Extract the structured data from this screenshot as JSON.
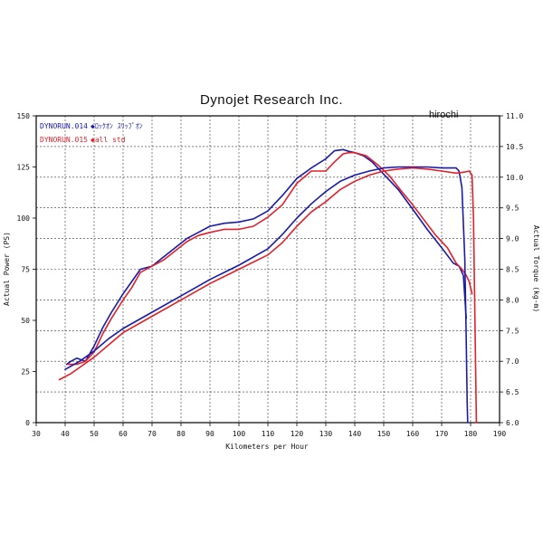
{
  "chart_data": {
    "type": "line",
    "title": "Dynojet  Research  Inc.",
    "watermark": "hirochi",
    "xlabel": "Kilometers per Hour",
    "ylabel_left": "Actual Power (PS)",
    "ylabel_right": "Actual Torque (kg-m)",
    "xlim": [
      30,
      190
    ],
    "ylim_left": [
      0,
      150
    ],
    "ylim_right": [
      6.0,
      11.0
    ],
    "x_ticks": [
      "30",
      "40",
      "50",
      "60",
      "70",
      "80",
      "90",
      "100",
      "110",
      "120",
      "130",
      "140",
      "150",
      "160",
      "170",
      "180",
      "190"
    ],
    "y_left_ticks": [
      "0",
      "25",
      "50",
      "75",
      "100",
      "125",
      "150"
    ],
    "y_right_ticks": [
      "6.0",
      "6.5",
      "7.0",
      "7.5",
      "8.0",
      "8.5",
      "9.0",
      "9.5",
      "10.0",
      "10.5",
      "11.0"
    ],
    "grid": true,
    "legend_position": "top-left",
    "legend": [
      {
        "run": "DYNORUN.014",
        "desc": "◆ﾛｯｸｵﾝ  ｽﾘｯﾌﾟｵﾝ",
        "color": "#1a1aa8"
      },
      {
        "run": "DYNORUN.015",
        "desc": "◆all std",
        "color": "#e0202a"
      }
    ],
    "series": [
      {
        "name": "DYNORUN.014",
        "axis": "right",
        "quantity": "torque",
        "color": "#1a1aa8",
        "x": [
          40.5,
          42,
          44,
          47,
          50,
          53,
          56,
          60,
          63,
          66,
          70,
          74,
          78,
          82,
          86,
          90,
          95,
          100,
          105,
          110,
          115,
          120,
          125,
          130,
          133,
          136,
          138,
          140,
          143,
          146,
          150,
          155,
          160,
          165,
          170,
          174,
          176,
          177.5,
          178,
          178.5
        ],
        "y": [
          6.95,
          7.0,
          7.05,
          7.0,
          7.25,
          7.55,
          7.8,
          8.1,
          8.3,
          8.5,
          8.55,
          8.7,
          8.85,
          9.0,
          9.1,
          9.2,
          9.25,
          9.27,
          9.32,
          9.45,
          9.7,
          9.98,
          10.15,
          10.3,
          10.43,
          10.45,
          10.42,
          10.4,
          10.35,
          10.25,
          10.05,
          9.8,
          9.48,
          9.15,
          8.85,
          8.6,
          8.55,
          8.4,
          8.05,
          7.7
        ]
      },
      {
        "name": "DYNORUN.015",
        "axis": "right",
        "quantity": "torque",
        "color": "#e0202a",
        "x": [
          41,
          44,
          47,
          50,
          53,
          56,
          60,
          63,
          66,
          70,
          74,
          78,
          82,
          86,
          90,
          95,
          100,
          105,
          110,
          115,
          120,
          125,
          130,
          133,
          136,
          138,
          140,
          144,
          148,
          152,
          156,
          160,
          164,
          168,
          172,
          175,
          177,
          178.5,
          179.5,
          180.5
        ],
        "y": [
          6.95,
          6.95,
          7.0,
          7.15,
          7.45,
          7.7,
          8.0,
          8.2,
          8.45,
          8.55,
          8.65,
          8.8,
          8.95,
          9.05,
          9.1,
          9.15,
          9.15,
          9.2,
          9.35,
          9.55,
          9.9,
          10.1,
          10.1,
          10.25,
          10.38,
          10.4,
          10.4,
          10.35,
          10.2,
          10.02,
          9.78,
          9.55,
          9.3,
          9.05,
          8.85,
          8.6,
          8.5,
          8.4,
          8.3,
          8.1
        ]
      },
      {
        "name": "DYNORUN.014",
        "axis": "left",
        "quantity": "power",
        "color": "#1a1aa8",
        "x": [
          40,
          45,
          50,
          55,
          60,
          70,
          80,
          90,
          100,
          110,
          115,
          120,
          125,
          130,
          135,
          140,
          145,
          150,
          155,
          160,
          165,
          170,
          173,
          175,
          176,
          177,
          178,
          178.5,
          178.8,
          179
        ],
        "y": [
          26,
          30,
          35,
          41,
          46,
          54,
          62,
          70,
          77,
          85,
          92,
          100,
          107,
          113,
          118,
          121,
          123,
          124.5,
          125,
          125,
          125,
          124.5,
          124.5,
          124.5,
          123,
          115,
          80,
          40,
          10,
          0
        ]
      },
      {
        "name": "DYNORUN.015",
        "axis": "left",
        "quantity": "power",
        "color": "#e0202a",
        "x": [
          38,
          42,
          45,
          50,
          55,
          60,
          70,
          80,
          90,
          100,
          110,
          115,
          120,
          125,
          130,
          135,
          140,
          145,
          150,
          155,
          160,
          165,
          170,
          175,
          178,
          179.5,
          180.5,
          181,
          181.5,
          182
        ],
        "y": [
          21,
          24,
          27,
          32,
          38,
          44,
          52,
          60,
          68,
          75,
          82,
          88,
          96,
          103,
          108,
          114,
          118,
          121,
          123,
          124,
          124.5,
          124,
          123,
          122,
          122.5,
          123,
          121,
          100,
          50,
          0
        ]
      }
    ]
  }
}
